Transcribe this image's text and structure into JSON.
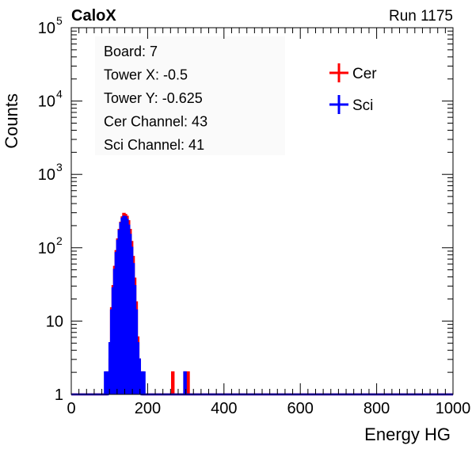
{
  "header": {
    "left": "CaloX",
    "right": "Run 1175"
  },
  "info": {
    "lines": [
      "Board: 7",
      "Tower X: -0.5",
      "Tower Y: -0.625",
      "Cer Channel: 43",
      "Sci Channel: 41"
    ]
  },
  "chart_data": {
    "type": "histogram",
    "title": "",
    "xlabel": "Energy HG",
    "ylabel": "Counts",
    "xlim": [
      0,
      1000
    ],
    "ylim": [
      1,
      100000
    ],
    "yscale": "log",
    "grid": false,
    "legend_position": "top-right",
    "x_ticks": [
      "0",
      "200",
      "400",
      "600",
      "800",
      "1000"
    ],
    "y_ticks": [
      {
        "value": 1,
        "label": "1"
      },
      {
        "value": 10,
        "label": "10"
      },
      {
        "value": 100,
        "label": "10",
        "exp": "2"
      },
      {
        "value": 1000,
        "label": "10",
        "exp": "3"
      },
      {
        "value": 10000,
        "label": "10",
        "exp": "4"
      },
      {
        "value": 100000,
        "label": "10",
        "exp": "5"
      }
    ],
    "bin_width": 4,
    "series": [
      {
        "name": "Cer",
        "color": "#ff0000",
        "bins": [
          {
            "x": 92,
            "y": 2
          },
          {
            "x": 96,
            "y": 2
          },
          {
            "x": 100,
            "y": 3
          },
          {
            "x": 104,
            "y": 15
          },
          {
            "x": 108,
            "y": 30
          },
          {
            "x": 112,
            "y": 55
          },
          {
            "x": 116,
            "y": 90
          },
          {
            "x": 120,
            "y": 130
          },
          {
            "x": 124,
            "y": 175
          },
          {
            "x": 128,
            "y": 220
          },
          {
            "x": 132,
            "y": 260
          },
          {
            "x": 136,
            "y": 290
          },
          {
            "x": 140,
            "y": 280
          },
          {
            "x": 144,
            "y": 265
          },
          {
            "x": 148,
            "y": 230
          },
          {
            "x": 152,
            "y": 175
          },
          {
            "x": 156,
            "y": 120
          },
          {
            "x": 160,
            "y": 75
          },
          {
            "x": 164,
            "y": 38
          },
          {
            "x": 168,
            "y": 18
          },
          {
            "x": 172,
            "y": 6
          },
          {
            "x": 176,
            "y": 3
          },
          {
            "x": 180,
            "y": 2
          },
          {
            "x": 184,
            "y": 2
          },
          {
            "x": 188,
            "y": 1
          },
          {
            "x": 264,
            "y": 2
          },
          {
            "x": 296,
            "y": 2
          },
          {
            "x": 304,
            "y": 2
          }
        ]
      },
      {
        "name": "Sci",
        "color": "#0000ff",
        "bins": [
          {
            "x": 88,
            "y": 2
          },
          {
            "x": 96,
            "y": 2
          },
          {
            "x": 100,
            "y": 5
          },
          {
            "x": 104,
            "y": 14
          },
          {
            "x": 108,
            "y": 28
          },
          {
            "x": 112,
            "y": 50
          },
          {
            "x": 116,
            "y": 85
          },
          {
            "x": 120,
            "y": 125
          },
          {
            "x": 124,
            "y": 170
          },
          {
            "x": 128,
            "y": 215
          },
          {
            "x": 132,
            "y": 250
          },
          {
            "x": 136,
            "y": 265
          },
          {
            "x": 140,
            "y": 262
          },
          {
            "x": 144,
            "y": 240
          },
          {
            "x": 148,
            "y": 200
          },
          {
            "x": 152,
            "y": 150
          },
          {
            "x": 156,
            "y": 100
          },
          {
            "x": 160,
            "y": 60
          },
          {
            "x": 164,
            "y": 30
          },
          {
            "x": 168,
            "y": 14
          },
          {
            "x": 172,
            "y": 5
          },
          {
            "x": 176,
            "y": 3
          },
          {
            "x": 180,
            "y": 2
          },
          {
            "x": 188,
            "y": 2
          },
          {
            "x": 296,
            "y": 2
          }
        ]
      }
    ]
  }
}
